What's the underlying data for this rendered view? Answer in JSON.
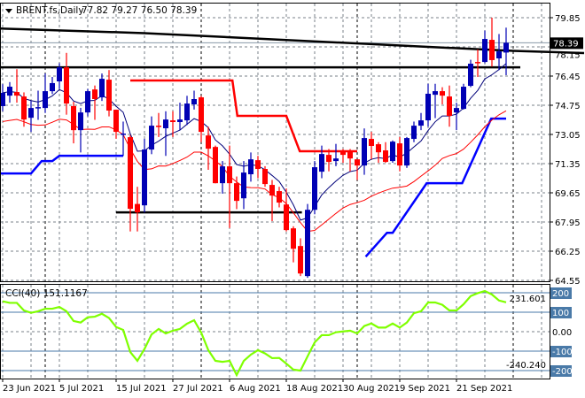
{
  "header": {
    "symbol_label": "BRENT.fs,Daily",
    "ohlc_label": "77.82 79.27 76.50 78.39"
  },
  "indicator": {
    "label": "CCI(40) 151.1167",
    "max_label": "231.601",
    "min_label": "-240.240"
  },
  "colors": {
    "bull": "#0000b4",
    "bear": "#ff0000",
    "ma_fast": "#00007a",
    "ma_slow": "#ff0000",
    "step_red": "#ff0000",
    "step_blue": "#0000ff",
    "cci": "#7fff00",
    "level_line": "#4a7aa8",
    "grid": "#7a8088"
  },
  "chart_data": [
    {
      "type": "candlestick",
      "title": "BRENT.fs,Daily",
      "current_price": 78.39,
      "current_price_label": "78.39",
      "ylim": [
        64.55,
        79.85
      ],
      "y_ticks": [
        "79.85",
        "78.15",
        "76.45",
        "74.75",
        "73.05",
        "71.35",
        "69.65",
        "67.95",
        "66.25",
        "64.55"
      ],
      "x_ticks": [
        {
          "bar": 0,
          "label": "23 Jun 2021"
        },
        {
          "bar": 8,
          "label": "5 Jul 2021"
        },
        {
          "bar": 16,
          "label": "15 Jul 2021"
        },
        {
          "bar": 24,
          "label": "27 Jul 2021"
        },
        {
          "bar": 32,
          "label": "6 Aug 2021"
        },
        {
          "bar": 40,
          "label": "18 Aug 2021"
        },
        {
          "bar": 48,
          "label": "30 Aug 2021"
        },
        {
          "bar": 56,
          "label": "9 Sep 2021"
        },
        {
          "bar": 64,
          "label": "21 Sep 2021"
        }
      ],
      "ohlc": [
        [
          74.7,
          75.98,
          74.4,
          75.47
        ],
        [
          75.31,
          76.1,
          74.9,
          75.83
        ],
        [
          75.52,
          76.85,
          74.9,
          75.31
        ],
        [
          75.26,
          75.5,
          73.5,
          73.92
        ],
        [
          74.02,
          75.0,
          73.2,
          74.59
        ],
        [
          74.59,
          75.6,
          73.9,
          74.64
        ],
        [
          74.59,
          76.6,
          74.3,
          75.57
        ],
        [
          75.57,
          76.4,
          75.4,
          76.04
        ],
        [
          76.14,
          77.2,
          75.7,
          76.96
        ],
        [
          76.96,
          77.8,
          74.2,
          74.85
        ],
        [
          74.7,
          74.95,
          72.53,
          73.3
        ],
        [
          73.3,
          74.6,
          72.0,
          74.33
        ],
        [
          74.33,
          75.7,
          74.1,
          75.57
        ],
        [
          75.67,
          75.9,
          73.9,
          75.11
        ],
        [
          75.21,
          76.6,
          75.0,
          76.29
        ],
        [
          76.24,
          76.8,
          74.1,
          74.44
        ],
        [
          74.49,
          74.5,
          72.8,
          73.2
        ],
        [
          73.05,
          73.8,
          71.8,
          73.1
        ],
        [
          72.89,
          73.0,
          67.4,
          68.72
        ],
        [
          69.0,
          70.0,
          67.4,
          68.51
        ],
        [
          68.92,
          72.8,
          68.5,
          72.17
        ],
        [
          72.17,
          74.1,
          71.9,
          73.56
        ],
        [
          73.56,
          74.3,
          72.9,
          73.51
        ],
        [
          73.41,
          74.4,
          71.8,
          73.92
        ],
        [
          73.87,
          74.4,
          72.9,
          73.77
        ],
        [
          73.77,
          74.9,
          73.3,
          73.92
        ],
        [
          73.87,
          75.3,
          73.6,
          74.85
        ],
        [
          74.8,
          75.6,
          74.5,
          75.11
        ],
        [
          75.21,
          75.3,
          72.6,
          73.2
        ],
        [
          72.99,
          73.5,
          70.99,
          72.22
        ],
        [
          72.32,
          72.4,
          70.2,
          70.21
        ],
        [
          70.21,
          71.5,
          69.6,
          71.19
        ],
        [
          71.19,
          72.4,
          67.6,
          70.21
        ],
        [
          70.21,
          70.6,
          68.7,
          69.18
        ],
        [
          69.33,
          71.5,
          68.7,
          70.83
        ],
        [
          70.73,
          72.0,
          70.3,
          71.6
        ],
        [
          71.55,
          71.8,
          70.5,
          71.04
        ],
        [
          71.04,
          71.2,
          70.0,
          70.16
        ],
        [
          70.11,
          70.4,
          68.0,
          69.49
        ],
        [
          69.75,
          70.0,
          68.8,
          69.08
        ],
        [
          68.97,
          69.9,
          67.4,
          67.48
        ],
        [
          67.58,
          67.7,
          65.6,
          66.39
        ],
        [
          66.55,
          67.0,
          64.8,
          64.95
        ],
        [
          64.8,
          69.0,
          64.7,
          68.66
        ],
        [
          68.66,
          71.5,
          68.4,
          71.14
        ],
        [
          70.88,
          72.4,
          70.5,
          71.91
        ],
        [
          71.86,
          72.2,
          70.9,
          71.45
        ],
        [
          71.5,
          72.5,
          71.2,
          71.65
        ],
        [
          72.07,
          72.2,
          71.4,
          71.86
        ],
        [
          72.07,
          72.2,
          70.9,
          71.65
        ],
        [
          71.6,
          71.6,
          70.4,
          71.24
        ],
        [
          71.24,
          73.4,
          70.7,
          72.84
        ],
        [
          72.79,
          73.2,
          71.6,
          72.38
        ],
        [
          72.48,
          72.6,
          71.4,
          72.01
        ],
        [
          72.12,
          72.6,
          71.4,
          71.45
        ],
        [
          71.5,
          72.7,
          71.4,
          72.63
        ],
        [
          72.53,
          72.9,
          70.9,
          71.24
        ],
        [
          71.24,
          72.9,
          71.1,
          72.84
        ],
        [
          72.79,
          73.8,
          72.6,
          73.56
        ],
        [
          73.56,
          74.3,
          73.3,
          73.87
        ],
        [
          73.87,
          76.0,
          73.5,
          75.42
        ],
        [
          75.36,
          76.0,
          74.0,
          75.57
        ],
        [
          75.57,
          75.8,
          74.8,
          75.31
        ],
        [
          75.26,
          75.9,
          73.5,
          74.13
        ],
        [
          74.33,
          74.9,
          73.3,
          74.59
        ],
        [
          74.54,
          76.0,
          74.5,
          75.83
        ],
        [
          75.88,
          77.4,
          75.8,
          77.17
        ],
        [
          77.27,
          78.0,
          76.4,
          77.22
        ],
        [
          77.27,
          79.1,
          77.2,
          78.61
        ],
        [
          78.56,
          79.85,
          77.0,
          77.38
        ],
        [
          77.48,
          78.9,
          76.8,
          77.89
        ],
        [
          77.82,
          79.27,
          76.5,
          78.39
        ]
      ],
      "overlays": {
        "red_step": [
          [
            18,
            76.19
          ],
          [
            32.4,
            76.19
          ],
          [
            33.1,
            74.13
          ],
          [
            40,
            74.13
          ],
          [
            41.9,
            72.07
          ],
          [
            50,
            72.07
          ]
        ],
        "blue_step_1": [
          [
            -1,
            70.78
          ],
          [
            4,
            70.78
          ],
          [
            5.5,
            71.5
          ],
          [
            7,
            71.5
          ],
          [
            8,
            71.81
          ],
          [
            17,
            71.81
          ]
        ],
        "blue_step_2": [
          [
            51.2,
            65.93
          ],
          [
            54.2,
            67.32
          ],
          [
            55,
            67.32
          ],
          [
            59.8,
            70.21
          ],
          [
            64.8,
            70.21
          ],
          [
            68.9,
            73.97
          ],
          [
            71,
            73.97
          ]
        ],
        "resistance_line": [
          [
            -1,
            76.96
          ],
          [
            73,
            76.96
          ]
        ],
        "support_line": [
          [
            16,
            68.51
          ],
          [
            42.2,
            68.51
          ]
        ],
        "trend_line": [
          [
            -1,
            79.23
          ],
          [
            20,
            78.95
          ],
          [
            40,
            78.55
          ],
          [
            60,
            78.15
          ],
          [
            72,
            77.92
          ],
          [
            82,
            77.79
          ]
        ]
      }
    },
    {
      "type": "line",
      "title": "CCI(40)",
      "ylim": [
        -240.24,
        231.601
      ],
      "levels": [
        {
          "value": 200,
          "label": "200"
        },
        {
          "value": 100,
          "label": "100"
        },
        {
          "value": 0,
          "label": "0.00"
        },
        {
          "value": -100,
          "label": "-100"
        },
        {
          "value": -200,
          "label": "-200"
        }
      ],
      "values": [
        156,
        148,
        148,
        109,
        97,
        105,
        118,
        118,
        127,
        105,
        55,
        47,
        74,
        77,
        92,
        70,
        24,
        9,
        -105,
        -150,
        -89,
        -14,
        14,
        -9,
        5,
        14,
        41,
        59,
        -5,
        -95,
        -150,
        -155,
        -150,
        -223,
        -150,
        -118,
        -95,
        -112,
        -136,
        -135,
        -164,
        -195,
        -200,
        -127,
        -55,
        -18,
        -18,
        -3,
        1,
        5,
        -9,
        29,
        42,
        21,
        21,
        42,
        21,
        47,
        95,
        105,
        150,
        150,
        138,
        109,
        109,
        141,
        183,
        198,
        209,
        191,
        160,
        151
      ]
    }
  ]
}
